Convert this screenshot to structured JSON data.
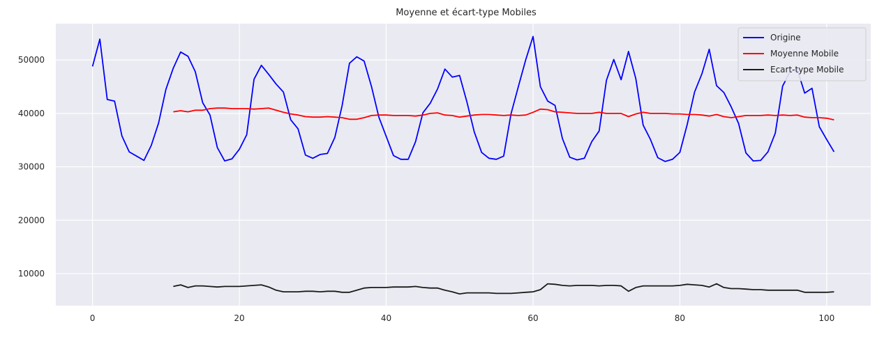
{
  "chart_data": {
    "type": "line",
    "title": "Moyenne et écart-type Mobiles",
    "xlabel": "",
    "ylabel": "",
    "xlim": [
      -5,
      106
    ],
    "ylim": [
      4000,
      56800
    ],
    "xticks": [
      0,
      20,
      40,
      60,
      80,
      100
    ],
    "yticks": [
      10000,
      20000,
      30000,
      40000,
      50000
    ],
    "grid": true,
    "legend_position": "top-right",
    "series": [
      {
        "name": "Origine",
        "color": "#0000ff",
        "x_start": 0,
        "values": [
          48800,
          53900,
          42600,
          42300,
          35800,
          32800,
          32000,
          31200,
          34000,
          38200,
          44500,
          48500,
          51500,
          50700,
          47800,
          42000,
          39700,
          33600,
          31100,
          31500,
          33300,
          36000,
          46400,
          49000,
          47300,
          45500,
          44000,
          38800,
          37100,
          32200,
          31600,
          32300,
          32500,
          35500,
          41500,
          49400,
          50600,
          49800,
          45000,
          39300,
          35700,
          32100,
          31400,
          31400,
          34700,
          40100,
          41900,
          44600,
          48300,
          46800,
          47100,
          42100,
          36500,
          32700,
          31600,
          31400,
          32000,
          39900,
          45000,
          50000,
          54400,
          45000,
          42300,
          41500,
          35300,
          31800,
          31300,
          31600,
          34700,
          36700,
          46200,
          50100,
          46300,
          51600,
          46500,
          37800,
          35100,
          31700,
          31000,
          31400,
          32700,
          37900,
          44000,
          47400,
          52000,
          45200,
          43900,
          41200,
          38100,
          32600,
          31100,
          31200,
          32800,
          36300,
          45100,
          47800,
          48200,
          43800,
          44700,
          37500,
          35100,
          32800
        ]
      },
      {
        "name": "Moyenne Mobile",
        "color": "#ff0000",
        "x_start": 11,
        "values": [
          40300,
          40500,
          40300,
          40600,
          40600,
          40900,
          41000,
          41000,
          40900,
          40900,
          40900,
          40800,
          40900,
          41000,
          40600,
          40200,
          39900,
          39700,
          39400,
          39300,
          39300,
          39400,
          39300,
          39200,
          38900,
          38900,
          39200,
          39600,
          39700,
          39700,
          39600,
          39600,
          39600,
          39500,
          39700,
          40000,
          40100,
          39700,
          39600,
          39300,
          39500,
          39700,
          39800,
          39800,
          39700,
          39600,
          39700,
          39600,
          39700,
          40200,
          40800,
          40700,
          40300,
          40200,
          40100,
          40000,
          40000,
          40000,
          40200,
          40000,
          40000,
          40000,
          39400,
          39900,
          40200,
          40000,
          40000,
          40000,
          39900,
          39900,
          39800,
          39800,
          39700,
          39500,
          39800,
          39400,
          39200,
          39400,
          39600,
          39600,
          39600,
          39700,
          39600,
          39700,
          39600,
          39700,
          39300,
          39200,
          39200,
          39100,
          38800
        ]
      },
      {
        "name": "Ecart-type Mobile",
        "color": "#1a1a1a",
        "x_start": 11,
        "values": [
          7600,
          7900,
          7400,
          7700,
          7700,
          7600,
          7500,
          7600,
          7600,
          7600,
          7700,
          7800,
          7900,
          7500,
          6900,
          6600,
          6600,
          6600,
          6700,
          6700,
          6600,
          6700,
          6700,
          6500,
          6500,
          6900,
          7300,
          7400,
          7400,
          7400,
          7500,
          7500,
          7500,
          7600,
          7400,
          7300,
          7300,
          6900,
          6600,
          6200,
          6400,
          6400,
          6400,
          6400,
          6300,
          6300,
          6300,
          6400,
          6500,
          6600,
          7000,
          8100,
          8000,
          7800,
          7700,
          7800,
          7800,
          7800,
          7700,
          7800,
          7800,
          7700,
          6700,
          7400,
          7700,
          7700,
          7700,
          7700,
          7700,
          7800,
          8000,
          7900,
          7800,
          7500,
          8100,
          7400,
          7200,
          7200,
          7100,
          7000,
          7000,
          6900,
          6900,
          6900,
          6900,
          6900,
          6500,
          6500,
          6500,
          6500,
          6600
        ]
      }
    ]
  }
}
